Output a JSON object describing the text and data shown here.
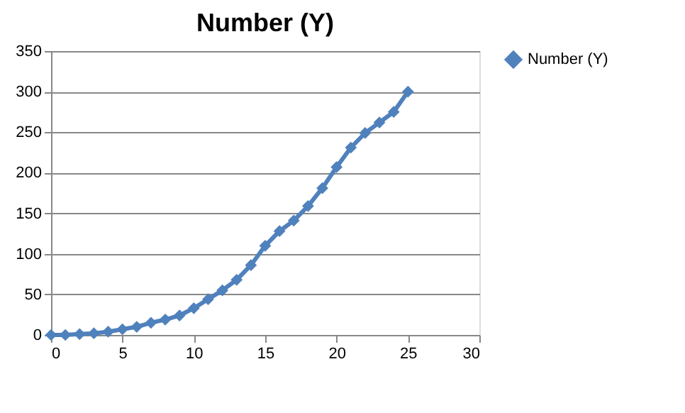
{
  "chart_data": {
    "type": "line",
    "title": "Number (Y)",
    "x": [
      0,
      1,
      2,
      3,
      4,
      5,
      6,
      7,
      8,
      9,
      10,
      11,
      12,
      13,
      14,
      15,
      16,
      17,
      18,
      19,
      20,
      21,
      22,
      23,
      24,
      25
    ],
    "series": [
      {
        "name": "Number (Y)",
        "color": "#4f81bd",
        "values": [
          0,
          0,
          1,
          2,
          4,
          7,
          10,
          15,
          19,
          24,
          33,
          44,
          55,
          68,
          86,
          110,
          128,
          141,
          159,
          181,
          207,
          231,
          249,
          262,
          275,
          300
        ]
      }
    ],
    "xlim": [
      0,
      30
    ],
    "xticks": [
      0,
      5,
      10,
      15,
      20,
      25,
      30
    ],
    "ylim": [
      0,
      350
    ],
    "yticks": [
      0,
      50,
      100,
      150,
      200,
      250,
      300,
      350
    ],
    "grid": "y",
    "legend": "right",
    "marker": "diamond",
    "line_style": "solid"
  }
}
